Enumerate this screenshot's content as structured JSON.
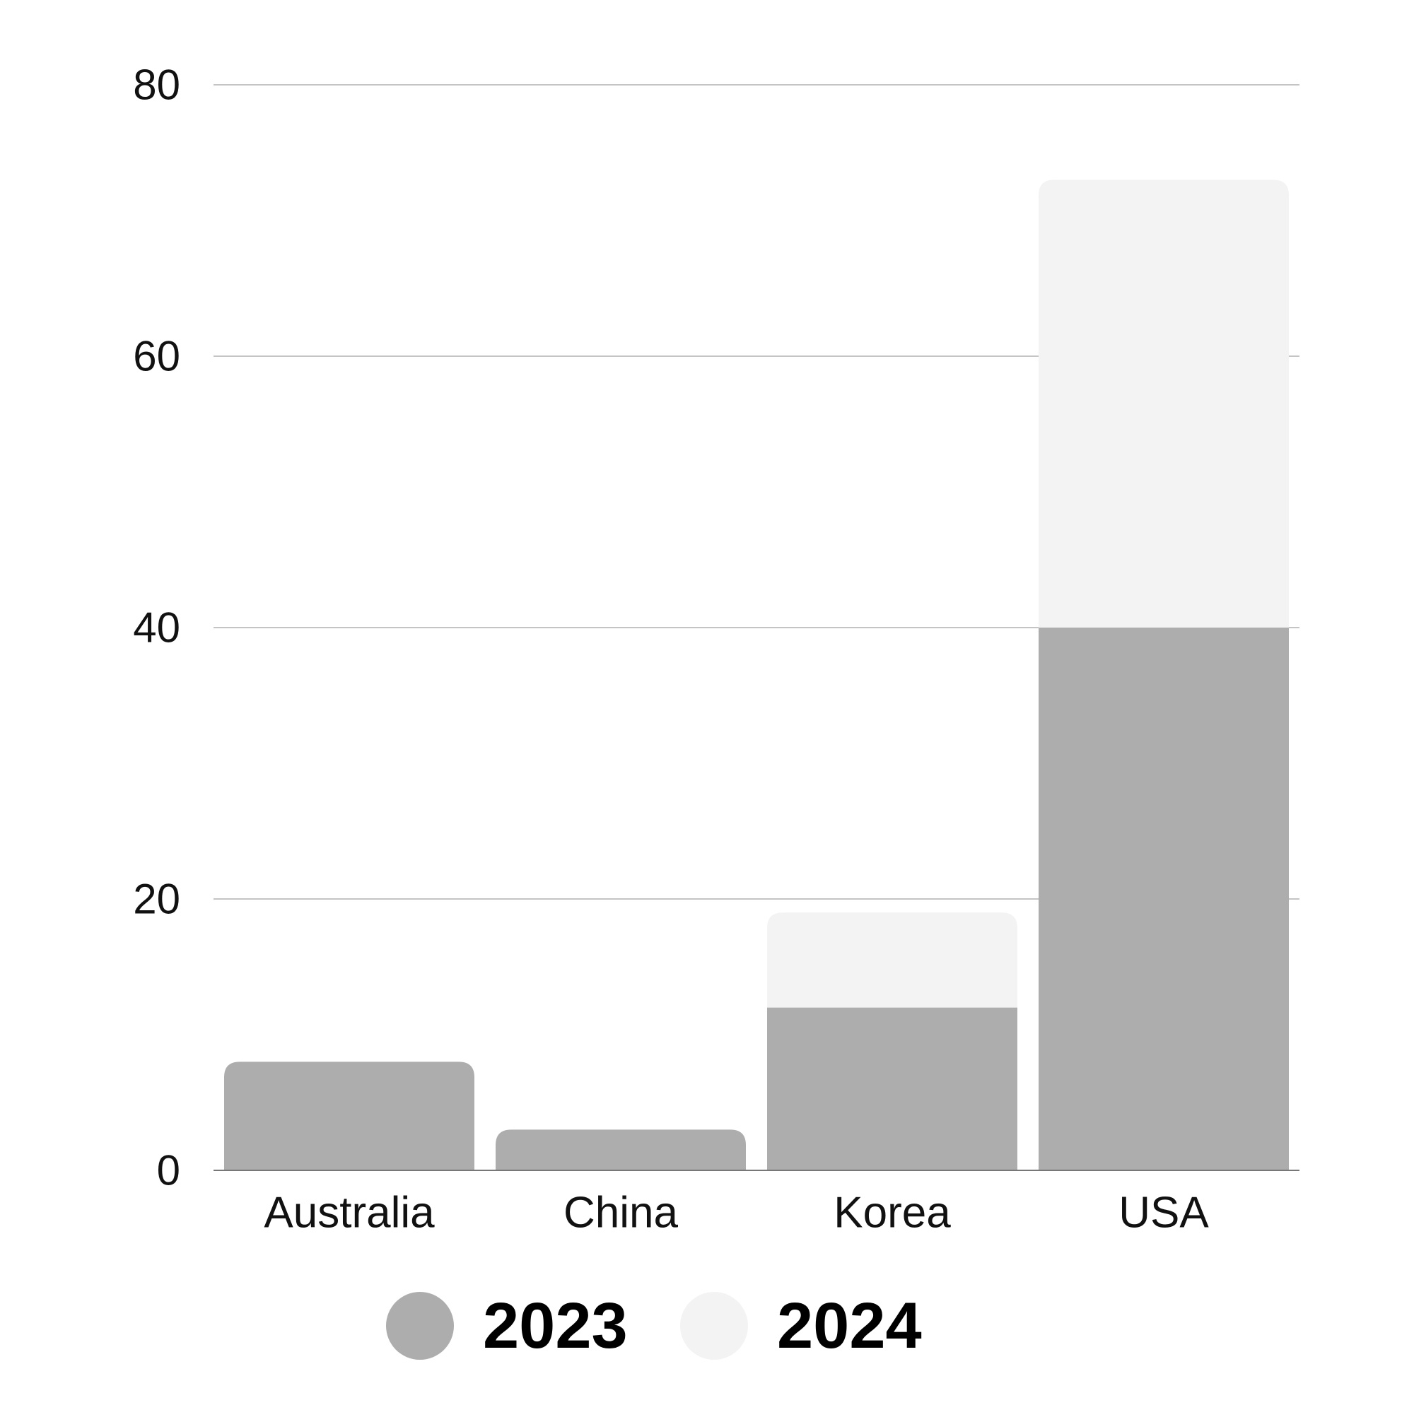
{
  "chart_data": {
    "type": "bar",
    "stacked": true,
    "categories": [
      "Australia",
      "China",
      "Korea",
      "USA"
    ],
    "series": [
      {
        "name": "2023",
        "color": "#adadad",
        "values": [
          8,
          3,
          12,
          40
        ]
      },
      {
        "name": "2024",
        "color": "#f3f3f3",
        "values": [
          0,
          0,
          7,
          33
        ]
      }
    ],
    "y_ticks": [
      "0",
      "20",
      "40",
      "60",
      "80"
    ],
    "ylim": [
      0,
      80
    ],
    "grid": true,
    "legend_position": "bottom-center",
    "title": "",
    "xlabel": "",
    "ylabel": ""
  }
}
